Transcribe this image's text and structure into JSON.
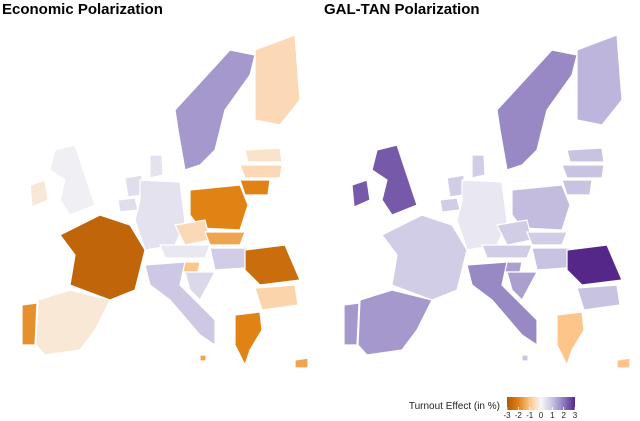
{
  "map": {
    "panels": [
      {
        "title": "Economic Polarization",
        "values": [
          0.15,
          -0.3,
          -2.7,
          -0.3,
          -1.8,
          0.5,
          0.5,
          0.4,
          0.4,
          1.6,
          -0.6,
          -0.4,
          -0.6,
          -2,
          -2,
          -0.6,
          -1.5,
          0.3,
          0.8,
          -1,
          0.6,
          -2.5,
          -0.7,
          -2,
          0.9,
          -1.5,
          -1.5
        ]
      },
      {
        "title": "GAL-TAN Polarization",
        "values": [
          2.4,
          2.4,
          0.8,
          1.6,
          1.6,
          0.8,
          0.8,
          0.3,
          0.8,
          1.8,
          1.2,
          1,
          1,
          1,
          1.1,
          0.8,
          0.8,
          0.8,
          1,
          1.5,
          1.5,
          3,
          1,
          -1,
          1.8,
          -1,
          1
        ]
      }
    ],
    "legend": {
      "title": "Turnout Effect (in %)",
      "range": [
        -3,
        3
      ],
      "ticks": [
        -3,
        -2,
        -1,
        0,
        1,
        2,
        3
      ],
      "colors": [
        "#b35806",
        "#e08214",
        "#fdc58a",
        "#f7f7f7",
        "#c9c3e2",
        "#8c7bbd",
        "#542788"
      ]
    }
  }
}
